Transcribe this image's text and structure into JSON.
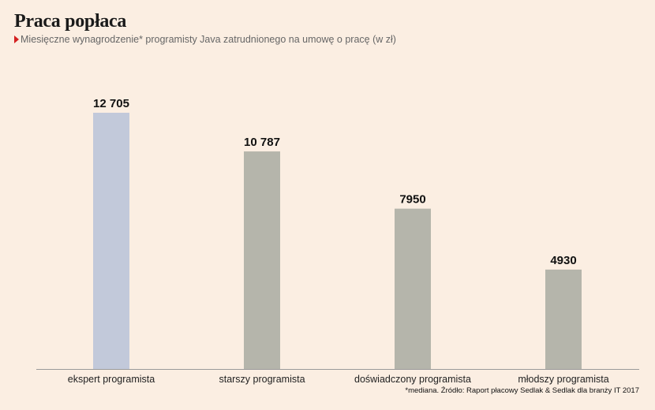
{
  "title": "Praca popłaca",
  "subtitle": "Miesięczne wynagrodzenie* programisty Java zatrudnionego na umowę o pracę (w zł)",
  "source": "*mediana. Źródło: Raport płacowy Sedlak & Sedlak dla branży IT 2017",
  "colors": {
    "highlight": "#c2c9da",
    "bar": "#b5b5ab",
    "axis": "#9a9a9a",
    "accent": "#d42020"
  },
  "chart_data": {
    "type": "bar",
    "title": "Praca popłaca",
    "categories": [
      "ekspert programista",
      "starszy programista",
      "doświadczony programista",
      "młodszy programista"
    ],
    "values": [
      12705,
      10787,
      7950,
      4930
    ],
    "value_labels": [
      "12 705",
      "10 787",
      "7950",
      "4930"
    ],
    "highlight_index": 0,
    "grid": false,
    "ylim": [
      0,
      14500
    ]
  }
}
